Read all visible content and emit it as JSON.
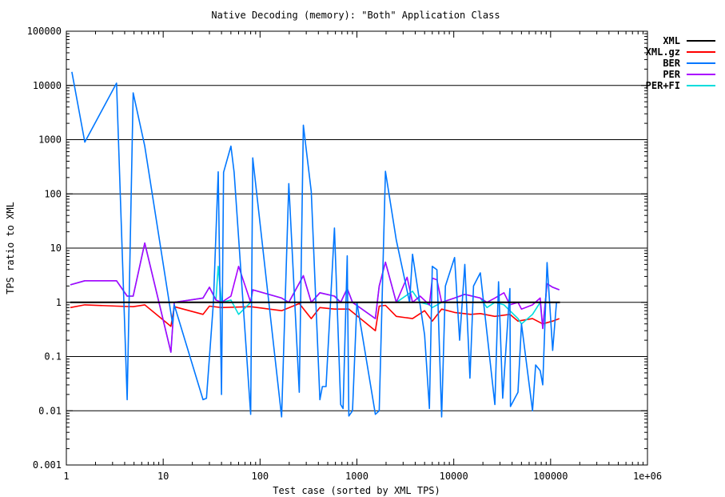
{
  "chart_data": {
    "type": "line",
    "title": "Native Decoding (memory): \"Both\" Application Class",
    "xlabel": "Test case (sorted by XML TPS)",
    "ylabel": "TPS ratio to XML",
    "xscale": "log",
    "yscale": "log",
    "xlim": [
      1,
      1000000
    ],
    "ylim": [
      0.001,
      100000
    ],
    "x_ticks": [
      {
        "v": 1,
        "label": "1"
      },
      {
        "v": 10,
        "label": "10"
      },
      {
        "v": 100,
        "label": "100"
      },
      {
        "v": 1000,
        "label": "1000"
      },
      {
        "v": 10000,
        "label": "10000"
      },
      {
        "v": 100000,
        "label": "100000"
      },
      {
        "v": 1000000,
        "label": "1e+06"
      }
    ],
    "y_ticks": [
      {
        "v": 0.001,
        "label": "0.001"
      },
      {
        "v": 0.01,
        "label": "0.01"
      },
      {
        "v": 0.1,
        "label": "0.1"
      },
      {
        "v": 1,
        "label": "1"
      },
      {
        "v": 10,
        "label": "10"
      },
      {
        "v": 100,
        "label": "100"
      },
      {
        "v": 1000,
        "label": "1000"
      },
      {
        "v": 10000,
        "label": "10000"
      },
      {
        "v": 100000,
        "label": "100000"
      }
    ],
    "grid": "horizontal major",
    "legend_position": "top-right",
    "series": [
      {
        "name": "XML",
        "color": "#000000",
        "points": [
          [
            1.1,
            1
          ],
          [
            125000,
            1
          ]
        ]
      },
      {
        "name": "XML.gz",
        "color": "#ff0000",
        "points": [
          [
            1.1,
            0.8
          ],
          [
            1.55,
            0.9
          ],
          [
            3.3,
            0.85
          ],
          [
            4.9,
            0.83
          ],
          [
            6.45,
            0.9
          ],
          [
            12,
            0.36
          ],
          [
            13,
            0.83
          ],
          [
            25.8,
            0.6
          ],
          [
            30,
            0.85
          ],
          [
            40,
            0.8
          ],
          [
            80,
            0.83
          ],
          [
            167,
            0.7
          ],
          [
            254,
            0.95
          ],
          [
            338,
            0.5
          ],
          [
            415,
            0.8
          ],
          [
            586,
            0.75
          ],
          [
            825,
            0.75
          ],
          [
            1550,
            0.3
          ],
          [
            1700,
            0.85
          ],
          [
            1970,
            0.88
          ],
          [
            2550,
            0.55
          ],
          [
            3750,
            0.5
          ],
          [
            5000,
            0.7
          ],
          [
            6000,
            0.45
          ],
          [
            7500,
            0.75
          ],
          [
            10200,
            0.65
          ],
          [
            15000,
            0.6
          ],
          [
            18800,
            0.62
          ],
          [
            26600,
            0.55
          ],
          [
            38000,
            0.6
          ],
          [
            46000,
            0.45
          ],
          [
            65000,
            0.5
          ],
          [
            83000,
            0.4
          ],
          [
            105000,
            0.45
          ],
          [
            123000,
            0.5
          ]
        ]
      },
      {
        "name": "BER",
        "color": "#0077ff",
        "points": [
          [
            1.14,
            17800
          ],
          [
            1.55,
            900
          ],
          [
            3.3,
            11000
          ],
          [
            4.25,
            0.016
          ],
          [
            4.9,
            7300
          ],
          [
            6.45,
            760
          ],
          [
            12.5,
            0.4
          ],
          [
            13,
            0.9
          ],
          [
            25.8,
            0.016
          ],
          [
            28,
            0.017
          ],
          [
            33,
            1.0
          ],
          [
            37,
            255
          ],
          [
            40,
            0.02
          ],
          [
            42,
            250
          ],
          [
            50,
            760
          ],
          [
            54,
            250
          ],
          [
            80,
            0.0086
          ],
          [
            84,
            460
          ],
          [
            167,
            0.0077
          ],
          [
            198,
            155
          ],
          [
            254,
            0.022
          ],
          [
            280,
            1850
          ],
          [
            338,
            110
          ],
          [
            415,
            0.016
          ],
          [
            440,
            0.028
          ],
          [
            480,
            0.028
          ],
          [
            586,
            23.5
          ],
          [
            680,
            0.013
          ],
          [
            720,
            0.011
          ],
          [
            795,
            7.2
          ],
          [
            825,
            0.008
          ],
          [
            900,
            0.01
          ],
          [
            1000,
            1.0
          ],
          [
            1550,
            0.0086
          ],
          [
            1700,
            0.01
          ],
          [
            1970,
            260
          ],
          [
            2550,
            14
          ],
          [
            3500,
            1.0
          ],
          [
            3750,
            7.7
          ],
          [
            5000,
            0.25
          ],
          [
            5600,
            0.011
          ],
          [
            6000,
            4.6
          ],
          [
            6700,
            4.0
          ],
          [
            7500,
            0.0077
          ],
          [
            8200,
            2.0
          ],
          [
            10200,
            6.7
          ],
          [
            11500,
            0.2
          ],
          [
            13000,
            5.0
          ],
          [
            14700,
            0.04
          ],
          [
            16000,
            2.0
          ],
          [
            18800,
            3.5
          ],
          [
            26600,
            0.013
          ],
          [
            29000,
            2.4
          ],
          [
            32000,
            0.017
          ],
          [
            38000,
            1.8
          ],
          [
            38500,
            0.012
          ],
          [
            46000,
            0.022
          ],
          [
            50000,
            0.4
          ],
          [
            65000,
            0.01
          ],
          [
            70000,
            0.07
          ],
          [
            78000,
            0.055
          ],
          [
            83000,
            0.03
          ],
          [
            92000,
            5.4
          ],
          [
            105000,
            0.13
          ],
          [
            115000,
            1.0
          ],
          [
            123000,
            1.0
          ]
        ]
      },
      {
        "name": "PER",
        "color": "#aa00ff",
        "points": [
          [
            1.1,
            2.1
          ],
          [
            1.55,
            2.5
          ],
          [
            3.3,
            2.5
          ],
          [
            4.25,
            1.3
          ],
          [
            4.9,
            1.3
          ],
          [
            6.45,
            12.4
          ],
          [
            12,
            0.12
          ],
          [
            13,
            1.0
          ],
          [
            25.8,
            1.2
          ],
          [
            30,
            1.9
          ],
          [
            35,
            1.1
          ],
          [
            40,
            1.0
          ],
          [
            50,
            1.3
          ],
          [
            60,
            4.6
          ],
          [
            80,
            1.0
          ],
          [
            84,
            1.7
          ],
          [
            167,
            1.2
          ],
          [
            198,
            1.0
          ],
          [
            280,
            3.1
          ],
          [
            338,
            1.0
          ],
          [
            415,
            1.5
          ],
          [
            586,
            1.3
          ],
          [
            680,
            1.0
          ],
          [
            795,
            1.8
          ],
          [
            900,
            1.0
          ],
          [
            1550,
            0.5
          ],
          [
            1700,
            2.0
          ],
          [
            1970,
            5.5
          ],
          [
            2550,
            1.0
          ],
          [
            3300,
            2.9
          ],
          [
            3750,
            1.0
          ],
          [
            4500,
            1.3
          ],
          [
            5600,
            0.9
          ],
          [
            6000,
            2.8
          ],
          [
            6700,
            2.6
          ],
          [
            7500,
            1.0
          ],
          [
            10200,
            1.2
          ],
          [
            13000,
            1.4
          ],
          [
            18800,
            1.2
          ],
          [
            22000,
            1.0
          ],
          [
            26600,
            1.2
          ],
          [
            33000,
            1.5
          ],
          [
            38000,
            0.9
          ],
          [
            46000,
            1.0
          ],
          [
            50000,
            0.75
          ],
          [
            65000,
            0.9
          ],
          [
            78000,
            1.2
          ],
          [
            83000,
            0.33
          ],
          [
            92000,
            2.2
          ],
          [
            105000,
            1.9
          ],
          [
            123000,
            1.7
          ]
        ]
      },
      {
        "name": "PER+FI",
        "color": "#00dddd",
        "points": [
          [
            1.1,
            2.1
          ],
          [
            1.55,
            2.5
          ],
          [
            3.3,
            2.5
          ],
          [
            4.25,
            1.3
          ],
          [
            4.9,
            1.3
          ],
          [
            6.45,
            12.4
          ],
          [
            12,
            0.12
          ],
          [
            13,
            1.0
          ],
          [
            25.8,
            1.2
          ],
          [
            30,
            1.9
          ],
          [
            35,
            1.1
          ],
          [
            37,
            4.6
          ],
          [
            40,
            1.0
          ],
          [
            50,
            1.1
          ],
          [
            60,
            0.6
          ],
          [
            80,
            1.0
          ],
          [
            84,
            1.7
          ],
          [
            167,
            1.2
          ],
          [
            198,
            1.0
          ],
          [
            280,
            3.1
          ],
          [
            338,
            1.0
          ],
          [
            415,
            1.5
          ],
          [
            586,
            1.3
          ],
          [
            680,
            1.0
          ],
          [
            795,
            1.8
          ],
          [
            900,
            1.0
          ],
          [
            1550,
            0.5
          ],
          [
            1700,
            2.0
          ],
          [
            1970,
            5.5
          ],
          [
            2550,
            1.0
          ],
          [
            3750,
            1.6
          ],
          [
            4500,
            1.0
          ],
          [
            5600,
            0.9
          ],
          [
            6000,
            0.8
          ],
          [
            7500,
            1.0
          ],
          [
            10200,
            1.2
          ],
          [
            13000,
            1.4
          ],
          [
            18800,
            1.2
          ],
          [
            22000,
            0.8
          ],
          [
            26600,
            1.0
          ],
          [
            33000,
            0.9
          ],
          [
            38000,
            0.7
          ],
          [
            46000,
            0.5
          ],
          [
            50000,
            0.4
          ],
          [
            65000,
            0.6
          ],
          [
            78000,
            1.0
          ],
          [
            83000,
            0.33
          ],
          [
            92000,
            2.2
          ],
          [
            105000,
            1.9
          ],
          [
            123000,
            1.7
          ]
        ]
      }
    ]
  }
}
